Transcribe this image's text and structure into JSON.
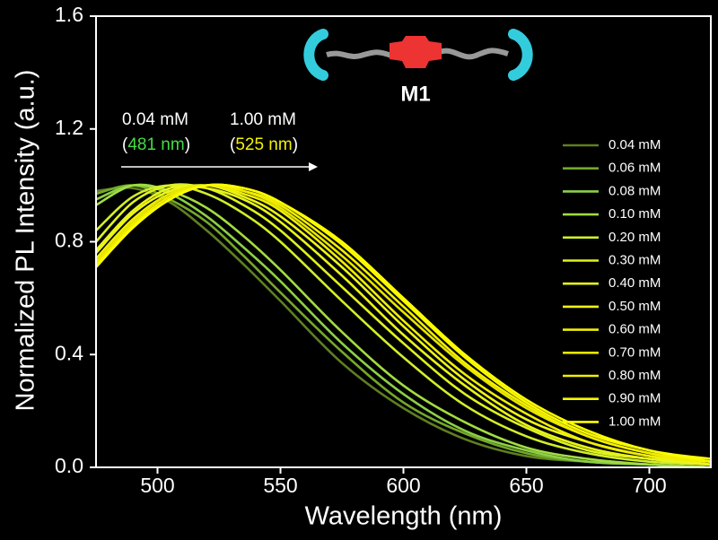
{
  "chart_data": {
    "type": "line",
    "x_label": "Wavelength (nm)",
    "y_label": "Normalized PL Intensity (a.u.)",
    "inset_label": "M1",
    "annotations": [
      {
        "line1": "0.04 mM",
        "open": "(",
        "value": "481 nm",
        "close": ")",
        "color": "#44dd44"
      },
      {
        "line1": "1.00 mM",
        "open": "(",
        "value": "525 nm",
        "close": ")",
        "color": "#f2f200"
      }
    ],
    "xlim": [
      475,
      725
    ],
    "ylim": [
      0,
      1.6
    ],
    "xticks": [
      500,
      550,
      600,
      650,
      700
    ],
    "yticks": [
      {
        "value": 0,
        "label": "0.0"
      },
      0.4,
      0.8,
      1.2,
      1.6
    ],
    "legend": "right",
    "x": [
      475,
      490,
      505,
      520,
      535,
      550,
      575,
      600,
      625,
      650,
      675,
      700,
      725
    ],
    "series": [
      {
        "name": "0.04 mM",
        "color": "#5f7f22",
        "values": [
          0.98,
          0.99,
          0.94,
          0.84,
          0.72,
          0.59,
          0.37,
          0.21,
          0.1,
          0.04,
          0.02,
          0.01,
          0.0
        ]
      },
      {
        "name": "0.06 mM",
        "color": "#74a82a",
        "values": [
          0.97,
          1.0,
          0.95,
          0.87,
          0.75,
          0.62,
          0.41,
          0.23,
          0.12,
          0.05,
          0.02,
          0.01,
          0.0
        ]
      },
      {
        "name": "0.08 mM",
        "color": "#8cd046",
        "values": [
          0.95,
          1.0,
          0.97,
          0.89,
          0.78,
          0.66,
          0.44,
          0.26,
          0.13,
          0.06,
          0.02,
          0.01,
          0.0
        ]
      },
      {
        "name": "0.10 mM",
        "color": "#a2dc40",
        "values": [
          0.93,
          1.0,
          0.98,
          0.92,
          0.82,
          0.7,
          0.48,
          0.29,
          0.16,
          0.07,
          0.03,
          0.01,
          0.0
        ]
      },
      {
        "name": "0.20 mM",
        "color": "#d2ee2a",
        "values": [
          0.84,
          0.96,
          1.0,
          0.97,
          0.9,
          0.8,
          0.59,
          0.39,
          0.22,
          0.11,
          0.05,
          0.02,
          0.01
        ]
      },
      {
        "name": "0.30 mM",
        "color": "#def220",
        "values": [
          0.8,
          0.94,
          1.0,
          0.99,
          0.93,
          0.84,
          0.64,
          0.44,
          0.26,
          0.14,
          0.06,
          0.03,
          0.01
        ]
      },
      {
        "name": "0.40 mM",
        "color": "#e8f41a",
        "values": [
          0.77,
          0.91,
          0.99,
          0.99,
          0.95,
          0.87,
          0.68,
          0.47,
          0.29,
          0.15,
          0.07,
          0.03,
          0.01
        ]
      },
      {
        "name": "0.50 mM",
        "color": "#eef41a",
        "values": [
          0.76,
          0.9,
          0.98,
          1.0,
          0.96,
          0.89,
          0.71,
          0.5,
          0.31,
          0.17,
          0.09,
          0.04,
          0.01
        ]
      },
      {
        "name": "0.60 mM",
        "color": "#eeee08",
        "values": [
          0.74,
          0.88,
          0.97,
          1.0,
          0.97,
          0.91,
          0.73,
          0.52,
          0.33,
          0.19,
          0.09,
          0.04,
          0.02
        ]
      },
      {
        "name": "0.70 mM",
        "color": "#e6e600",
        "values": [
          0.73,
          0.87,
          0.97,
          1.0,
          0.98,
          0.92,
          0.75,
          0.55,
          0.36,
          0.21,
          0.11,
          0.05,
          0.02
        ]
      },
      {
        "name": "0.80 mM",
        "color": "#f2ee00",
        "values": [
          0.72,
          0.86,
          0.96,
          1.0,
          0.98,
          0.93,
          0.77,
          0.57,
          0.37,
          0.22,
          0.11,
          0.05,
          0.02
        ]
      },
      {
        "name": "0.90 mM",
        "color": "#f8f800",
        "values": [
          0.71,
          0.85,
          0.95,
          1.0,
          0.99,
          0.94,
          0.79,
          0.59,
          0.39,
          0.23,
          0.12,
          0.06,
          0.02
        ]
      },
      {
        "name": "1.00 mM",
        "color": "#ffff00",
        "values": [
          0.71,
          0.85,
          0.95,
          1.0,
          0.99,
          0.94,
          0.8,
          0.6,
          0.4,
          0.24,
          0.13,
          0.06,
          0.03
        ]
      }
    ]
  }
}
